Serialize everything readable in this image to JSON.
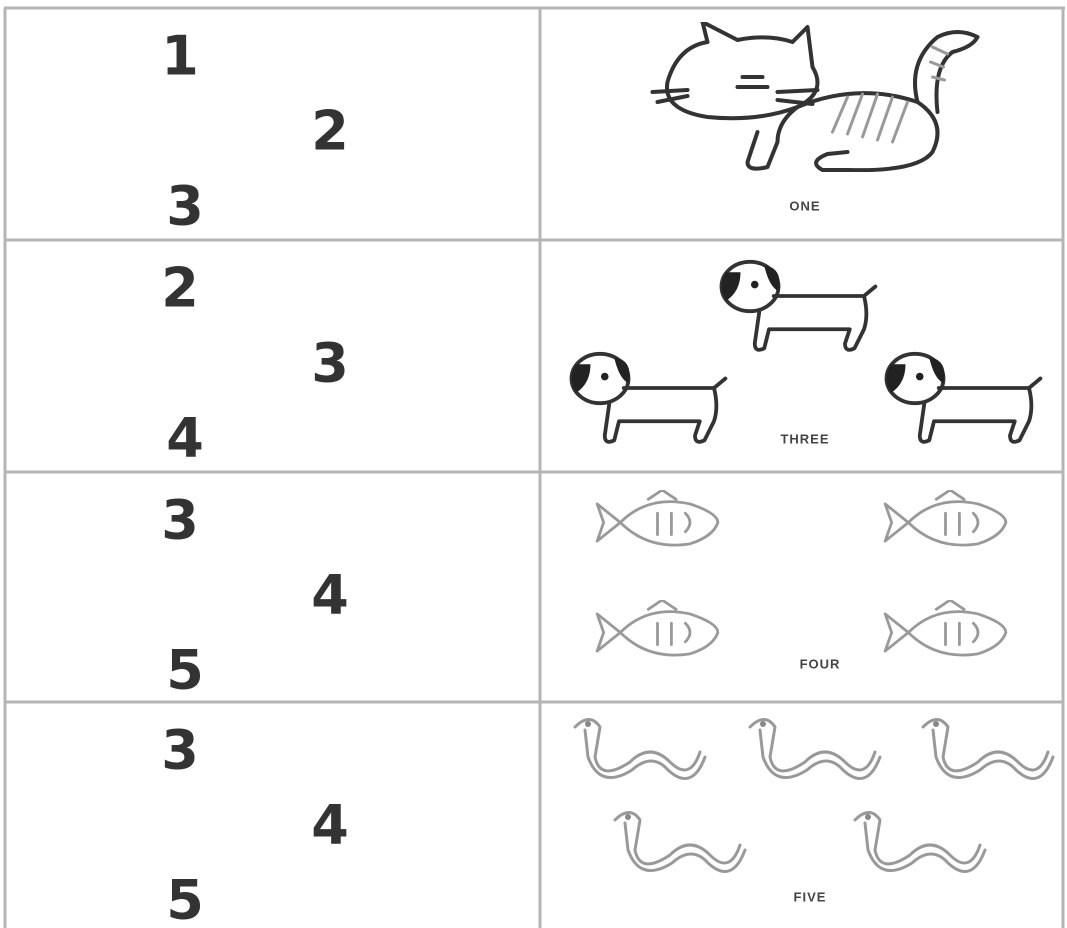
{
  "rows": [
    {
      "numbers": [
        1,
        2,
        3
      ],
      "word": "ONE"
    },
    {
      "numbers": [
        2,
        3,
        4
      ],
      "word": "THREE"
    },
    {
      "numbers": [
        3,
        4,
        5
      ],
      "word": "FOUR"
    },
    {
      "numbers": [
        3,
        4,
        5
      ],
      "word": "FIVE"
    }
  ]
}
